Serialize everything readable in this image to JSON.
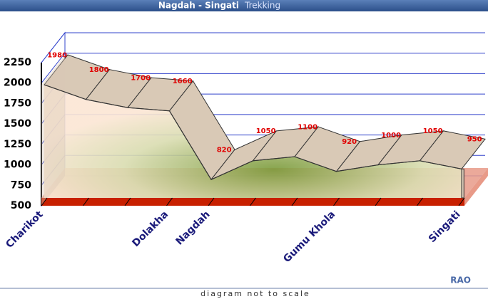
{
  "chart_data": {
    "type": "area3d",
    "title": "Nagdah - Singati",
    "subtitle": "Trekking",
    "note": "diagram not to scale",
    "credit": "RAO",
    "categories": [
      "Charikot",
      null,
      null,
      "Dolakha",
      "Nagdah",
      null,
      null,
      "Gumu Khola",
      null,
      null,
      "Singati"
    ],
    "values": [
      1980,
      1800,
      1700,
      1660,
      820,
      1050,
      1100,
      920,
      1000,
      1050,
      950
    ],
    "ylim": [
      500,
      2250
    ],
    "yticks": [
      500,
      750,
      1000,
      1250,
      1500,
      1750,
      2000,
      2250
    ],
    "grid": true,
    "color": "#d9c9b6"
  }
}
